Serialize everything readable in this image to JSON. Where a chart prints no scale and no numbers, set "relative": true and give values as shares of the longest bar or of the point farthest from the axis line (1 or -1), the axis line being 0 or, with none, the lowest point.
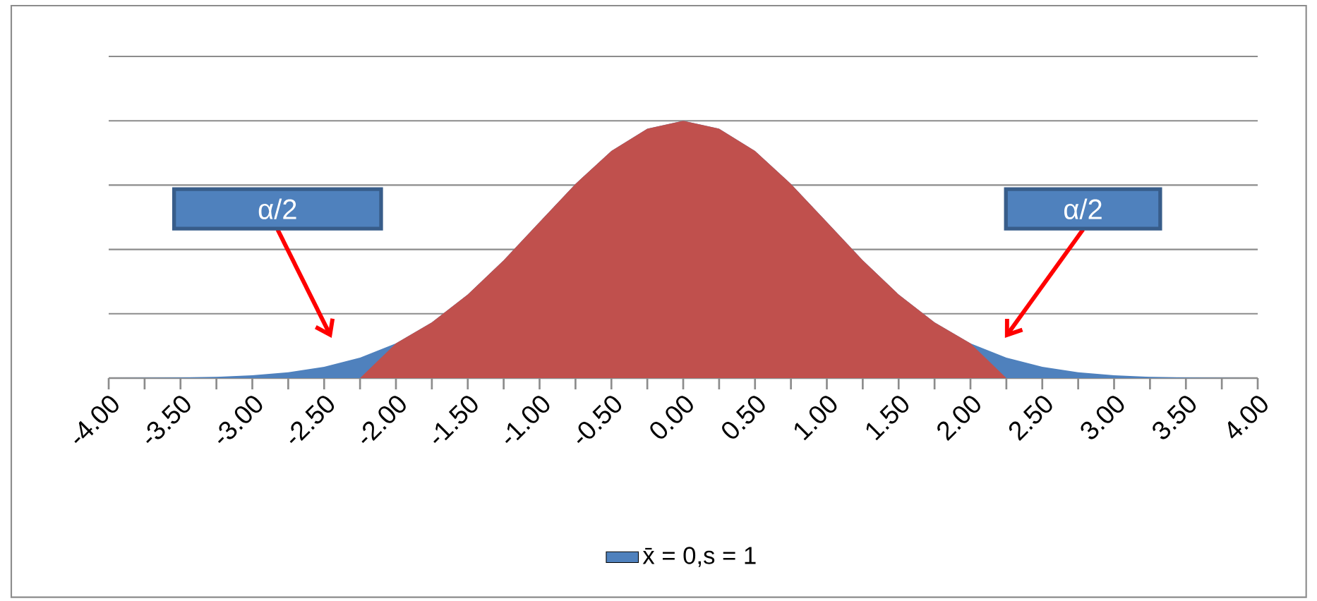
{
  "chart_data": {
    "type": "area",
    "relative": true,
    "grid": "y",
    "legend": "bottom",
    "categories": [
      "-4.00",
      null,
      "-3.50",
      null,
      "-3.00",
      null,
      "-2.50",
      null,
      "-2.00",
      null,
      "-1.50",
      null,
      "-1.00",
      null,
      "-0.50",
      null,
      "0.00",
      null,
      "0.50",
      null,
      "1.00",
      null,
      "1.50",
      null,
      "2.00",
      null,
      "2.50",
      null,
      "3.00",
      null,
      "3.50",
      null,
      "4.00"
    ],
    "series": [
      {
        "name": "x̄ = 0,s = 1",
        "color": "#4f81bd",
        "values": [
          0.0003,
          0.0009,
          0.0022,
          0.0051,
          0.0111,
          0.0228,
          0.0439,
          0.0796,
          0.1353,
          0.2163,
          0.3247,
          0.4578,
          0.6065,
          0.7548,
          0.8825,
          0.969,
          1,
          0.969,
          0.8825,
          0.7548,
          0.6065,
          0.4578,
          0.3247,
          0.2163,
          0.1353,
          0.0796,
          0.0439,
          0.0228,
          0.0111,
          0.0051,
          0.0022,
          0.0009,
          0.0003
        ]
      },
      {
        "color": "#c0504d",
        "values": [
          null,
          null,
          null,
          null,
          null,
          null,
          null,
          0,
          0.1353,
          0.2163,
          0.3247,
          0.4578,
          0.6065,
          0.7548,
          0.8825,
          0.969,
          1,
          0.969,
          0.8825,
          0.7548,
          0.6065,
          0.4578,
          0.3247,
          0.2163,
          0.1353,
          0,
          null,
          null,
          null,
          null,
          null,
          null,
          null
        ]
      }
    ],
    "annotations": [
      "α/2",
      "α/2"
    ]
  }
}
